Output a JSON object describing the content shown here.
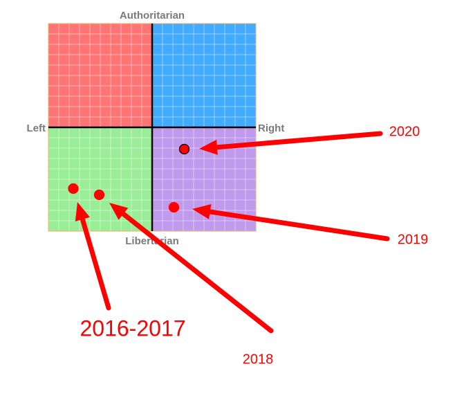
{
  "chart_data": {
    "type": "scatter",
    "axis_labels": {
      "top": "Authoritarian",
      "bottom": "Libertarian",
      "left": "Left",
      "right": "Right"
    },
    "xlim": [
      -10,
      10
    ],
    "ylim": [
      -10,
      10
    ],
    "quadrant_colors": {
      "top_left": "#ff7575",
      "top_right": "#42aaff",
      "bottom_left": "#9aed97",
      "bottom_right": "#c09aec"
    },
    "x": [
      3.1,
      2.1,
      -5.1,
      -7.6
    ],
    "y": [
      -2.1,
      -7.7,
      -6.5,
      -5.9
    ],
    "labels": [
      "2020",
      "2019",
      "2018",
      "2016-2017"
    ],
    "color": "#ff0000",
    "edgecolors": [
      "#000000",
      "#ff0000",
      "#ff0000",
      "#ff0000"
    ]
  }
}
